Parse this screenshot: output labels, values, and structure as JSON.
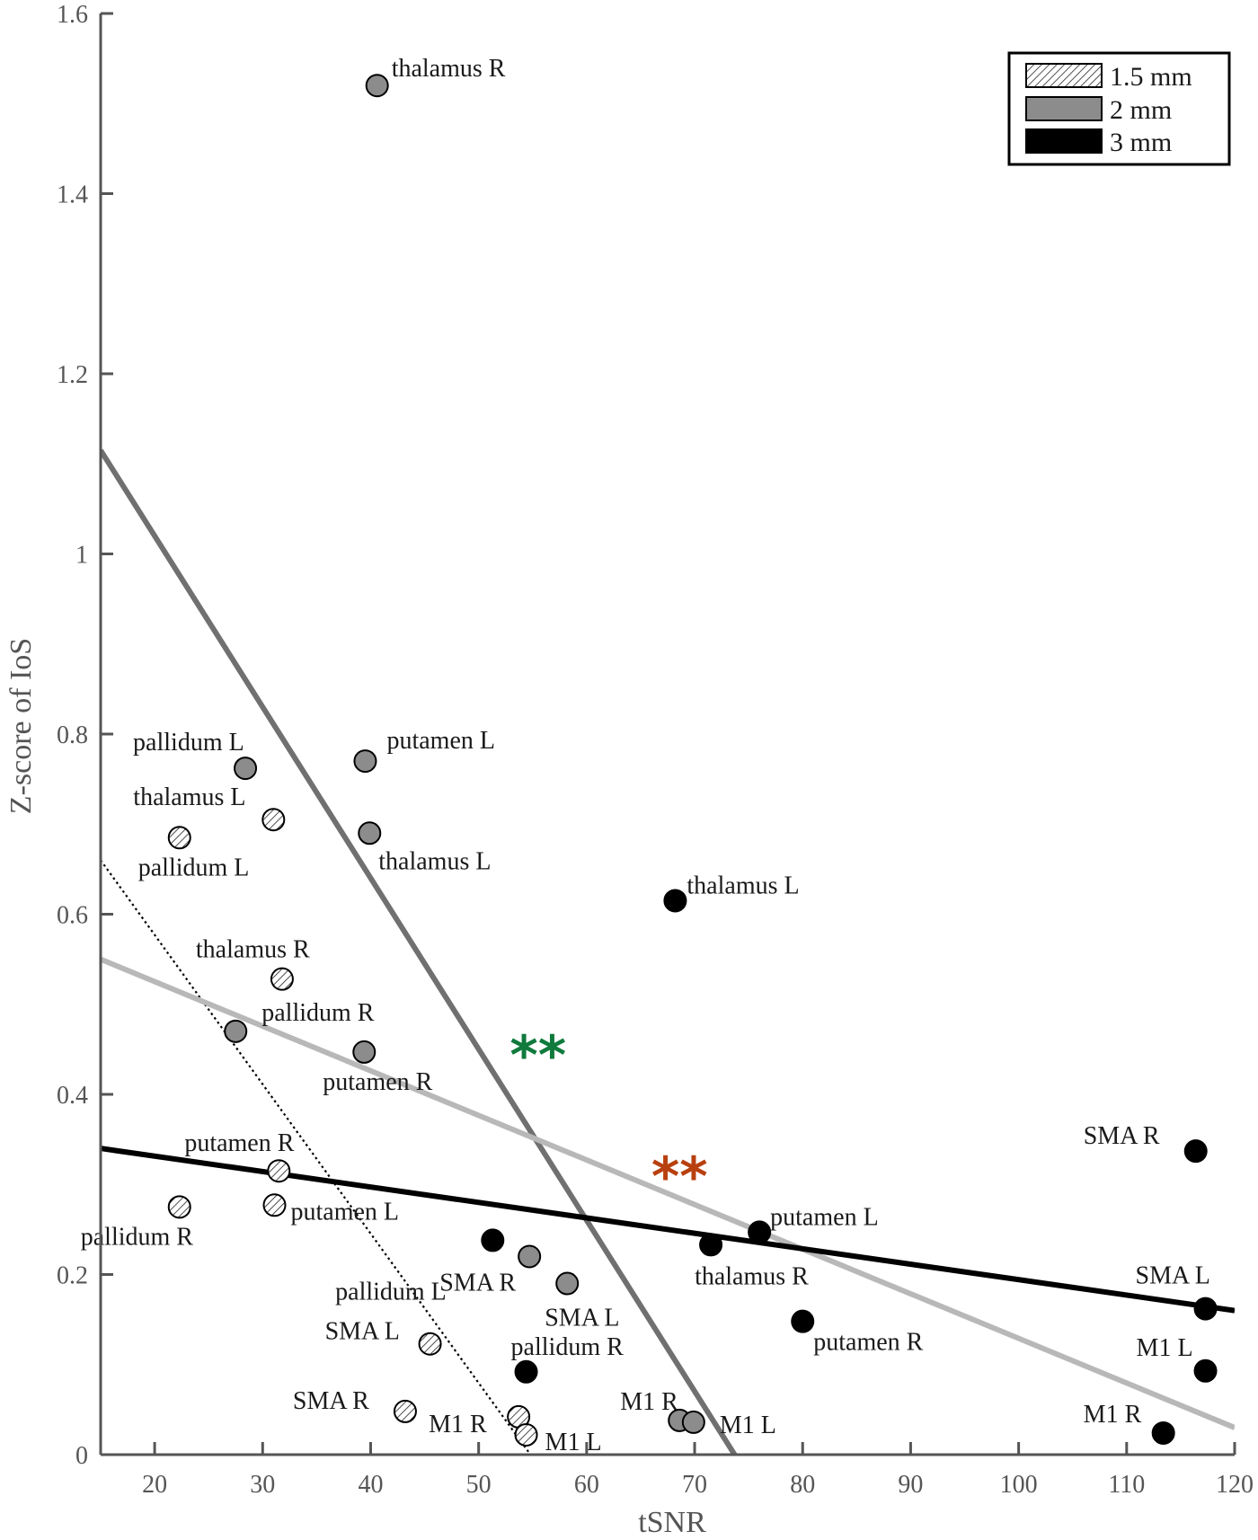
{
  "chart_data": {
    "type": "scatter",
    "xlabel": "tSNR",
    "ylabel": "Z-score of IoS",
    "xlim": [
      15,
      120
    ],
    "ylim": [
      0,
      1.6
    ],
    "x_ticks": [
      20,
      30,
      40,
      50,
      60,
      70,
      80,
      90,
      100,
      110,
      120
    ],
    "y_ticks": [
      0,
      0.2,
      0.4,
      0.6,
      0.8,
      1,
      1.2,
      1.4,
      1.6
    ],
    "x_tick_labels": [
      "20",
      "30",
      "40",
      "50",
      "60",
      "70",
      "80",
      "90",
      "100",
      "110",
      "120"
    ],
    "y_tick_labels": [
      "0",
      "0.2",
      "0.4",
      "0.6",
      "0.8",
      "1",
      "1.2",
      "1.4",
      "1.6"
    ],
    "legend_position": "top-right",
    "legend": [
      {
        "label": "1.5 mm",
        "style": "hatched"
      },
      {
        "label": "2 mm",
        "style": "gray"
      },
      {
        "label": "3 mm",
        "style": "black"
      }
    ],
    "series": [
      {
        "name": "1.5 mm",
        "style": "hatched",
        "points": [
          {
            "x": 31.0,
            "y": 0.705,
            "label": "thalamus L"
          },
          {
            "x": 22.3,
            "y": 0.685,
            "label": "pallidum L"
          },
          {
            "x": 31.8,
            "y": 0.528,
            "label": "thalamus R"
          },
          {
            "x": 31.5,
            "y": 0.315,
            "label": "putamen R"
          },
          {
            "x": 22.3,
            "y": 0.275,
            "label": "pallidum R"
          },
          {
            "x": 31.1,
            "y": 0.277,
            "label": "putamen L"
          },
          {
            "x": 45.5,
            "y": 0.123,
            "label": "SMA L"
          },
          {
            "x": 43.2,
            "y": 0.048,
            "label": "SMA R"
          },
          {
            "x": 53.7,
            "y": 0.042,
            "label": "M1 R"
          },
          {
            "x": 54.4,
            "y": 0.022,
            "label": "M1 L"
          }
        ]
      },
      {
        "name": "2 mm",
        "style": "gray",
        "points": [
          {
            "x": 40.6,
            "y": 1.52,
            "label": "thalamus R"
          },
          {
            "x": 28.4,
            "y": 0.762,
            "label": "pallidum L"
          },
          {
            "x": 39.5,
            "y": 0.77,
            "label": "putamen L"
          },
          {
            "x": 39.9,
            "y": 0.69,
            "label": "thalamus L"
          },
          {
            "x": 27.5,
            "y": 0.47,
            "label": "pallidum R"
          },
          {
            "x": 39.4,
            "y": 0.447,
            "label": "putamen R"
          },
          {
            "x": 54.7,
            "y": 0.22,
            "label": "pallidum L"
          },
          {
            "x": 58.2,
            "y": 0.19,
            "label": "SMA L"
          },
          {
            "x": 68.6,
            "y": 0.038,
            "label": "M1 R"
          },
          {
            "x": 69.9,
            "y": 0.036,
            "label": "M1 L"
          }
        ]
      },
      {
        "name": "3 mm",
        "style": "black",
        "points": [
          {
            "x": 68.2,
            "y": 0.615,
            "label": "thalamus L"
          },
          {
            "x": 116.4,
            "y": 0.337,
            "label": "SMA R"
          },
          {
            "x": 76.0,
            "y": 0.247,
            "label": "putamen L"
          },
          {
            "x": 51.3,
            "y": 0.238,
            "label": "SMA R"
          },
          {
            "x": 71.5,
            "y": 0.233,
            "label": "thalamus R"
          },
          {
            "x": 117.3,
            "y": 0.162,
            "label": "SMA L"
          },
          {
            "x": 80.0,
            "y": 0.148,
            "label": "putamen R"
          },
          {
            "x": 117.3,
            "y": 0.093,
            "label": "M1 L"
          },
          {
            "x": 54.4,
            "y": 0.092,
            "label": "pallidum R"
          },
          {
            "x": 113.4,
            "y": 0.024,
            "label": "M1 R"
          }
        ]
      }
    ],
    "fit_lines": [
      {
        "series": "1.5 mm",
        "style": "dotted",
        "x1": 15.0,
        "y1": 0.66,
        "x2": 54.8,
        "y2": 0.0
      },
      {
        "series": "2 mm",
        "style": "solid-dark-gray",
        "x1": 15.0,
        "y1": 1.115,
        "x2": 73.7,
        "y2": 0.0
      },
      {
        "series": "2 mm",
        "style": "solid-light-gray",
        "x1": 15.0,
        "y1": 0.55,
        "x2": 120.0,
        "y2": 0.03
      },
      {
        "series": "3 mm",
        "style": "solid-black",
        "x1": 15.0,
        "y1": 0.34,
        "x2": 120.0,
        "y2": 0.16
      }
    ],
    "annotations": [
      {
        "text": "**",
        "color": "#0f7a3c",
        "x": 55.5,
        "y": 0.445
      },
      {
        "text": "**",
        "color": "#b8400f",
        "x": 68.6,
        "y": 0.31
      }
    ],
    "colors": {
      "gray_marker": "#8c8c8c",
      "black_marker": "#000000",
      "dark_gray_line": "#707070",
      "light_gray_line": "#b8b8b8",
      "green_annotation": "#0f7a3c",
      "orange_annotation": "#b8400f"
    }
  }
}
